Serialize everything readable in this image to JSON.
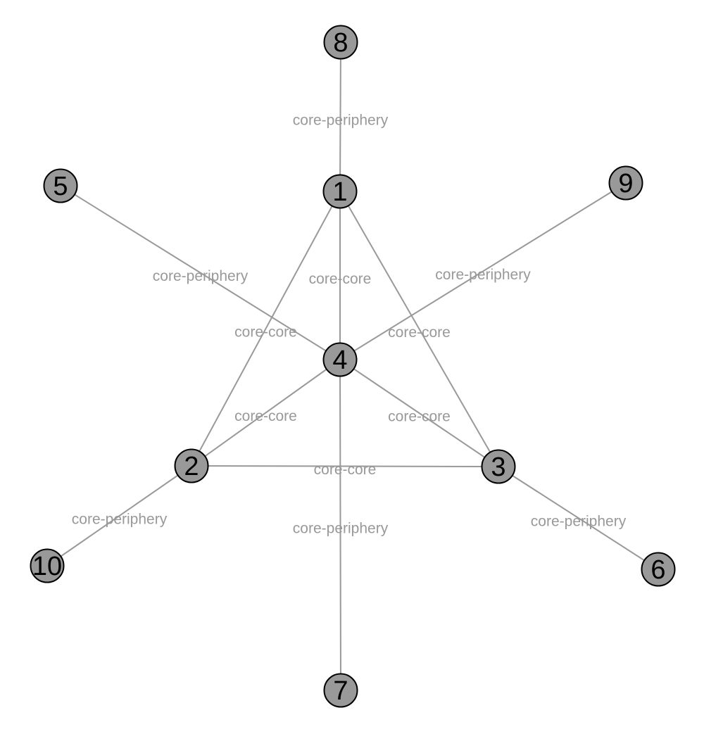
{
  "nodes": [
    "1",
    "2",
    "3",
    "4",
    "5",
    "6",
    "7",
    "8",
    "9",
    "10"
  ],
  "edges": [
    {
      "source": "8",
      "target": "1",
      "label": "core-periphery"
    },
    {
      "source": "5",
      "target": "4",
      "label": "core-periphery"
    },
    {
      "source": "9",
      "target": "4",
      "label": "core-periphery"
    },
    {
      "source": "1",
      "target": "4",
      "label": "core-core"
    },
    {
      "source": "1",
      "target": "2",
      "label": "core-core"
    },
    {
      "source": "1",
      "target": "3",
      "label": "core-core"
    },
    {
      "source": "4",
      "target": "2",
      "label": "core-core"
    },
    {
      "source": "4",
      "target": "3",
      "label": "core-core"
    },
    {
      "source": "2",
      "target": "3",
      "label": "core-core"
    },
    {
      "source": "2",
      "target": "10",
      "label": "core-periphery"
    },
    {
      "source": "3",
      "target": "6",
      "label": "core-periphery"
    },
    {
      "source": "4",
      "target": "7",
      "label": "core-periphery"
    }
  ],
  "colors": {
    "node_fill": "#999999",
    "node_stroke": "#000000",
    "edge": "#999999",
    "edge_label": "#999999"
  }
}
